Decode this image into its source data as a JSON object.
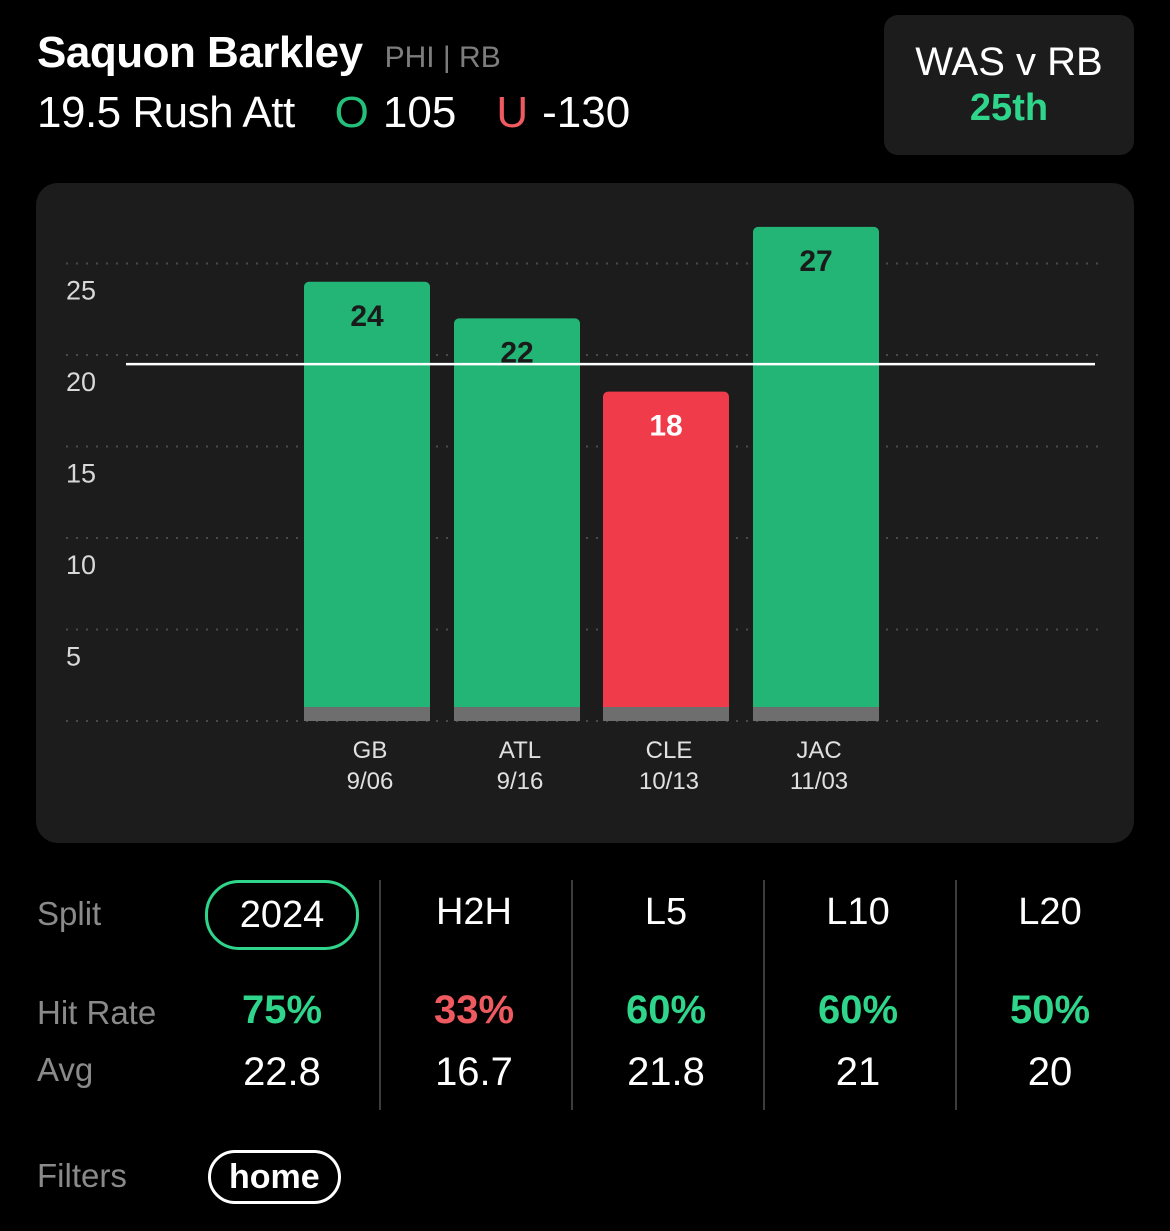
{
  "header": {
    "player_name": "Saquon Barkley",
    "team_position": "PHI | RB",
    "line_text": "19.5 Rush Att",
    "over_letter": "O",
    "over_odds": "105",
    "under_letter": "U",
    "under_odds": "-130"
  },
  "matchup": {
    "label": "WAS v RB",
    "rank": "25th"
  },
  "colors": {
    "over": "#23b576",
    "under": "#ef3b4a",
    "accent": "#2ed58a",
    "card": "#1c1c1c"
  },
  "chart_data": {
    "type": "bar",
    "categories": [
      "GB",
      "ATL",
      "CLE",
      "JAC"
    ],
    "dates": [
      "9/06",
      "9/16",
      "10/13",
      "11/03"
    ],
    "values": [
      24,
      22,
      18,
      27
    ],
    "bar_colors": [
      "#23b576",
      "#23b576",
      "#ef3b4a",
      "#23b576"
    ],
    "label_colors": [
      "#1a1a1a",
      "#1a1a1a",
      "#ffffff",
      "#1a1a1a"
    ],
    "line_value": 19.5,
    "yticks": [
      5,
      10,
      15,
      20,
      25
    ],
    "ylim": [
      0,
      27
    ],
    "grid": true,
    "xlabel": "",
    "ylabel": ""
  },
  "splits": {
    "row_labels": {
      "split": "Split",
      "hit_rate": "Hit Rate",
      "avg": "Avg"
    },
    "columns": [
      {
        "label": "2024",
        "hit_rate": "75%",
        "avg": "22.8",
        "hit_color": "#2ed58a",
        "active": true
      },
      {
        "label": "H2H",
        "hit_rate": "33%",
        "avg": "16.7",
        "hit_color": "#ef5a60",
        "active": false
      },
      {
        "label": "L5",
        "hit_rate": "60%",
        "avg": "21.8",
        "hit_color": "#2ed58a",
        "active": false
      },
      {
        "label": "L10",
        "hit_rate": "60%",
        "avg": "21",
        "hit_color": "#2ed58a",
        "active": false
      },
      {
        "label": "L20",
        "hit_rate": "50%",
        "avg": "20",
        "hit_color": "#2ed58a",
        "active": false
      }
    ]
  },
  "filters": {
    "label": "Filters",
    "chips": [
      "home"
    ]
  }
}
